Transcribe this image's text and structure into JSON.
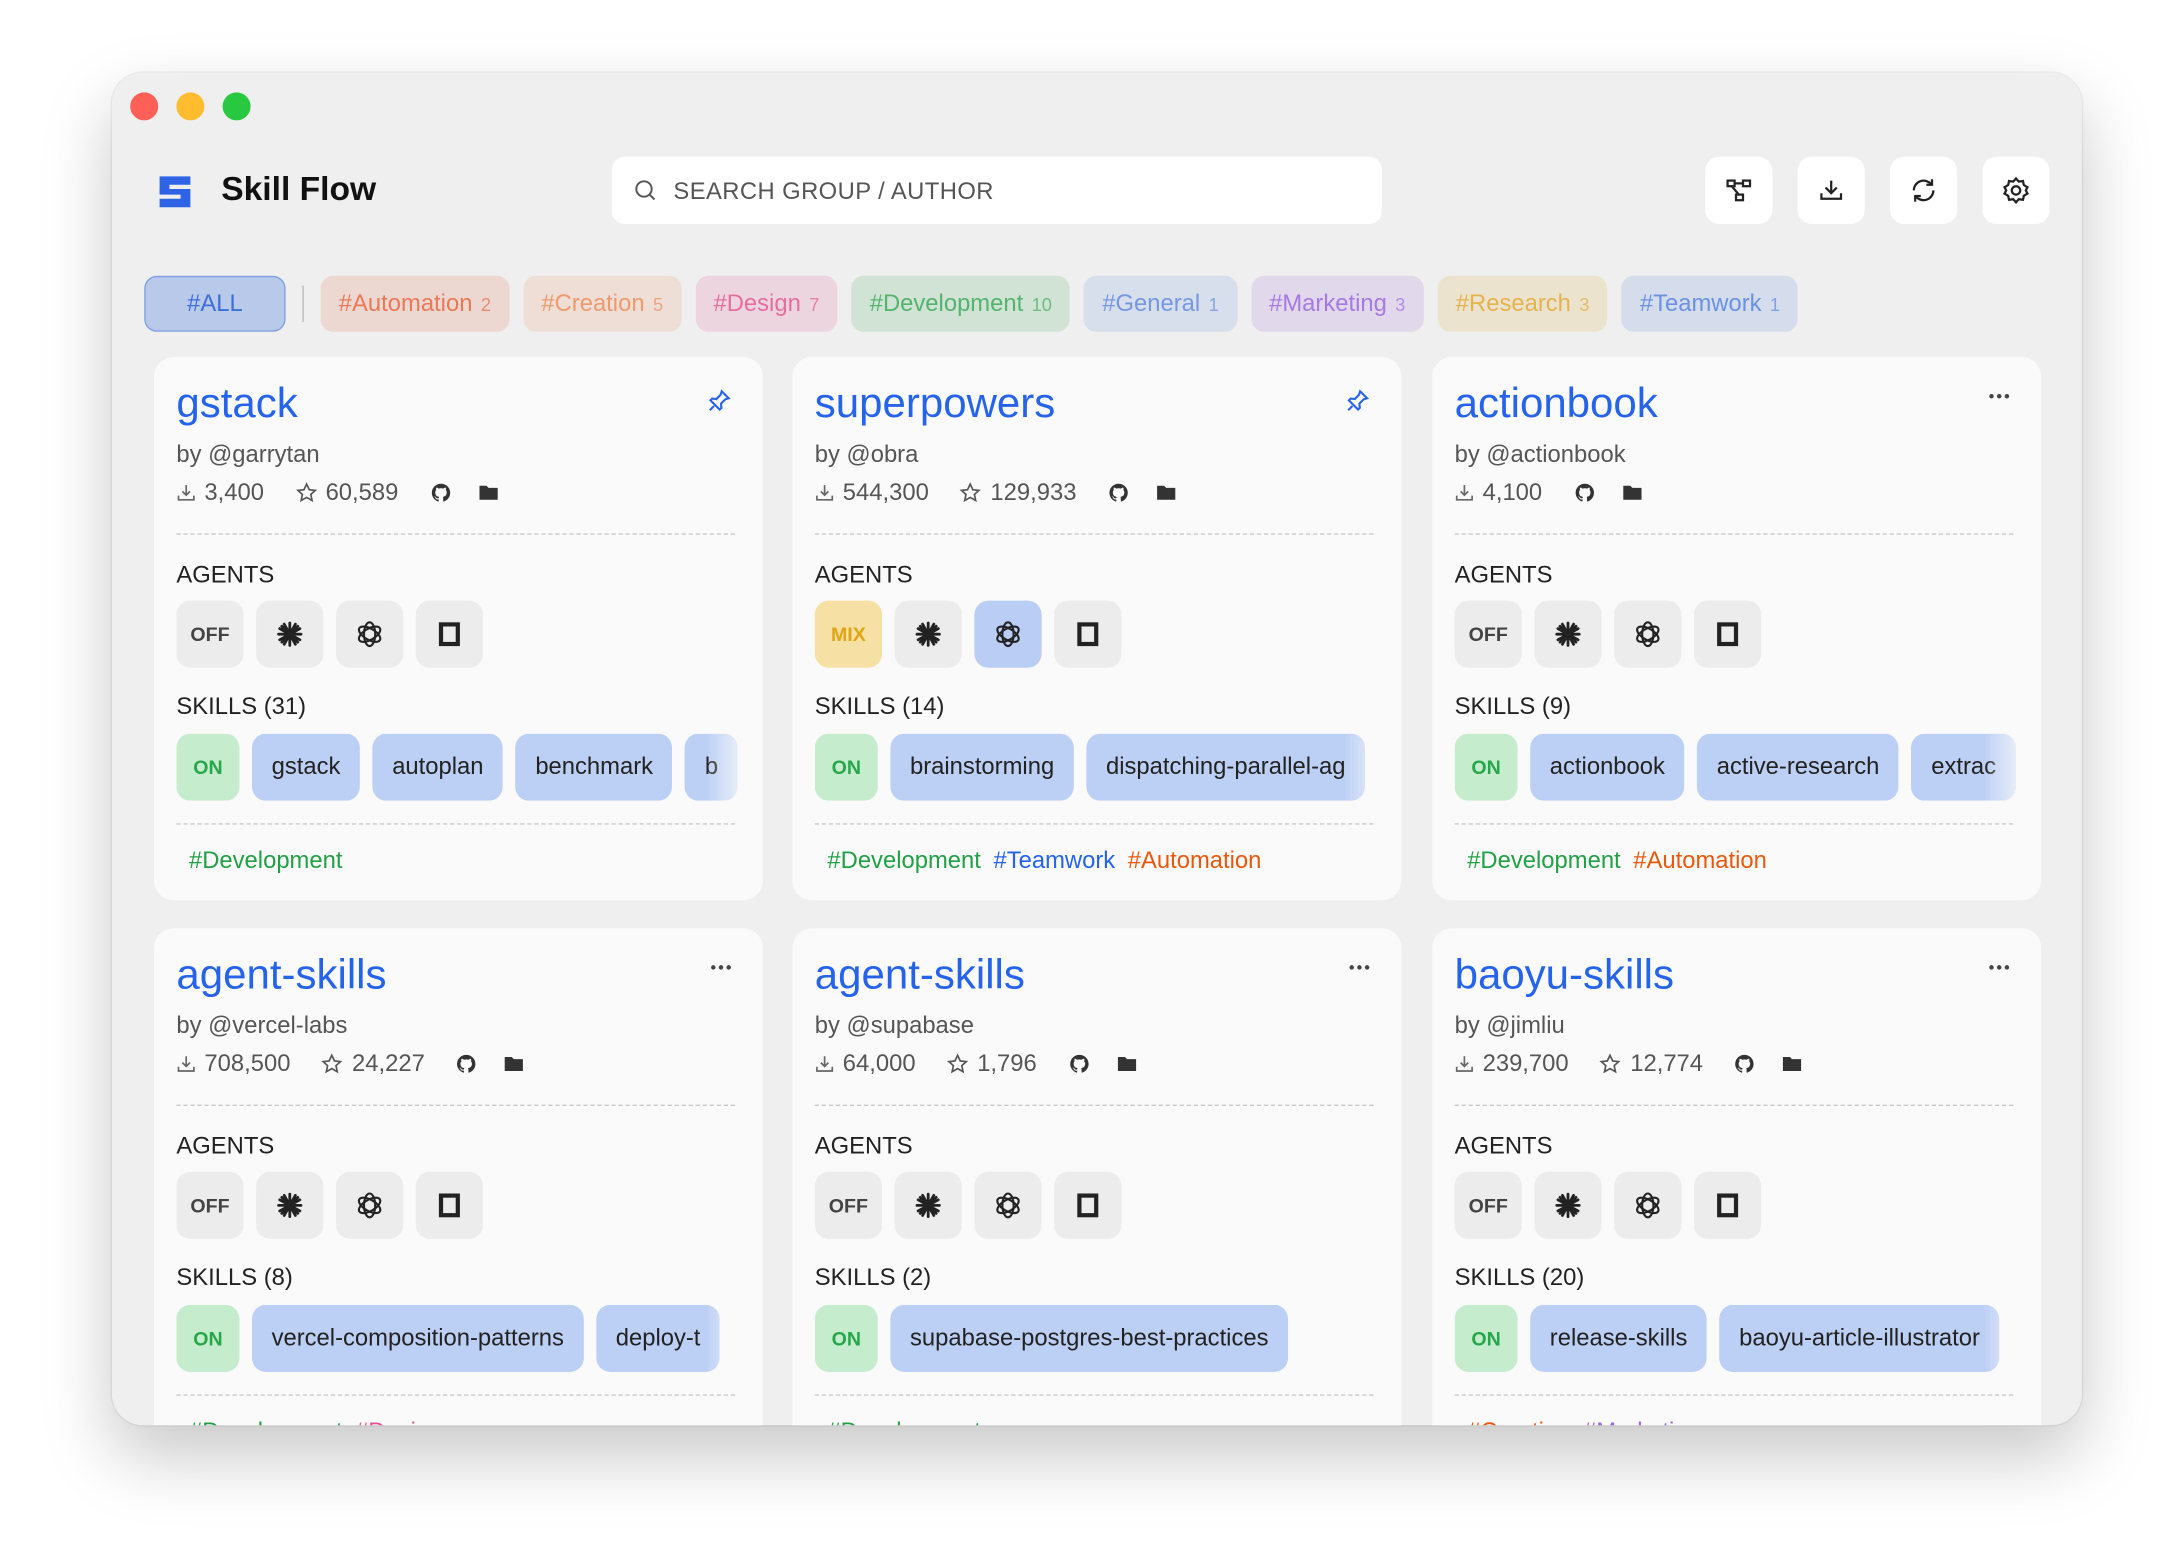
{
  "app": {
    "title": "Skill Flow",
    "search_placeholder": "SEARCH GROUP / AUTHOR"
  },
  "tags": [
    {
      "label": "#ALL",
      "color": "#3d6fd9"
    },
    {
      "label": "#Automation",
      "count": 2,
      "color": "#e8623a"
    },
    {
      "label": "#Creation",
      "count": 5,
      "color": "#ec8a52"
    },
    {
      "label": "#Design",
      "count": 7,
      "color": "#e5528f"
    },
    {
      "label": "#Development",
      "count": 10,
      "color": "#34a853"
    },
    {
      "label": "#General",
      "count": 1,
      "color": "#5b86e0"
    },
    {
      "label": "#Marketing",
      "count": 3,
      "color": "#9a62e0"
    },
    {
      "label": "#Research",
      "count": 3,
      "color": "#e2a62a"
    },
    {
      "label": "#Teamwork",
      "count": 1,
      "color": "#4f7fe0"
    }
  ],
  "cards": [
    {
      "name": "gstack",
      "author": "by @garrytan",
      "downloads": "3,400",
      "stars": "60,589",
      "pinned": true,
      "agents_label": "AGENTS",
      "agents": {
        "state": "OFF",
        "mixed": false,
        "enabled": [
          false,
          false,
          false
        ]
      },
      "skills_label": "SKILLS (31)",
      "skills_toggle": "ON",
      "skills": [
        "gstack",
        "autoplan",
        "benchmark",
        "b"
      ],
      "tags": [
        {
          "label": "#Development",
          "color": "#22a045"
        }
      ]
    },
    {
      "name": "superpowers",
      "author": "by @obra",
      "downloads": "544,300",
      "stars": "129,933",
      "pinned": true,
      "agents_label": "AGENTS",
      "agents": {
        "state": "MIX",
        "mixed": true,
        "enabled": [
          false,
          true,
          false
        ]
      },
      "skills_label": "SKILLS (14)",
      "skills_toggle": "ON",
      "skills": [
        "brainstorming",
        "dispatching-parallel-ag"
      ],
      "tags": [
        {
          "label": "#Development",
          "color": "#22a045"
        },
        {
          "label": "#Teamwork",
          "color": "#2563eb"
        },
        {
          "label": "#Automation",
          "color": "#ea580c"
        }
      ]
    },
    {
      "name": "actionbook",
      "author": "by @actionbook",
      "downloads": "4,100",
      "pinned": false,
      "agents_label": "AGENTS",
      "agents": {
        "state": "OFF",
        "mixed": false,
        "enabled": [
          false,
          false,
          false
        ]
      },
      "skills_label": "SKILLS (9)",
      "skills_toggle": "ON",
      "skills": [
        "actionbook",
        "active-research",
        "extrac"
      ],
      "tags": [
        {
          "label": "#Development",
          "color": "#22a045"
        },
        {
          "label": "#Automation",
          "color": "#ea580c"
        }
      ]
    },
    {
      "name": "agent-skills",
      "author": "by @vercel-labs",
      "downloads": "708,500",
      "stars": "24,227",
      "pinned": false,
      "agents_label": "AGENTS",
      "agents": {
        "state": "OFF",
        "mixed": false,
        "enabled": [
          false,
          false,
          false
        ]
      },
      "skills_label": "SKILLS (8)",
      "skills_toggle": "ON",
      "skills": [
        "vercel-composition-patterns",
        "deploy-t"
      ],
      "tags": [
        {
          "label": "#Development",
          "color": "#22a045"
        },
        {
          "label": "#Design",
          "color": "#e5528f"
        }
      ]
    },
    {
      "name": "agent-skills",
      "author": "by @supabase",
      "downloads": "64,000",
      "stars": "1,796",
      "pinned": false,
      "agents_label": "AGENTS",
      "agents": {
        "state": "OFF",
        "mixed": false,
        "enabled": [
          false,
          false,
          false
        ]
      },
      "skills_label": "SKILLS (2)",
      "skills_toggle": "ON",
      "skills": [
        "supabase-postgres-best-practices"
      ],
      "tags": [
        {
          "label": "#Development",
          "color": "#22a045"
        }
      ]
    },
    {
      "name": "baoyu-skills",
      "author": "by @jimliu",
      "downloads": "239,700",
      "stars": "12,774",
      "pinned": false,
      "agents_label": "AGENTS",
      "agents": {
        "state": "OFF",
        "mixed": false,
        "enabled": [
          false,
          false,
          false
        ]
      },
      "skills_label": "SKILLS (20)",
      "skills_toggle": "ON",
      "skills": [
        "release-skills",
        "baoyu-article-illustrator"
      ],
      "tags": [
        {
          "label": "#Creation",
          "color": "#ea580c"
        },
        {
          "label": "#Marketing",
          "color": "#9a62e0"
        }
      ]
    }
  ]
}
